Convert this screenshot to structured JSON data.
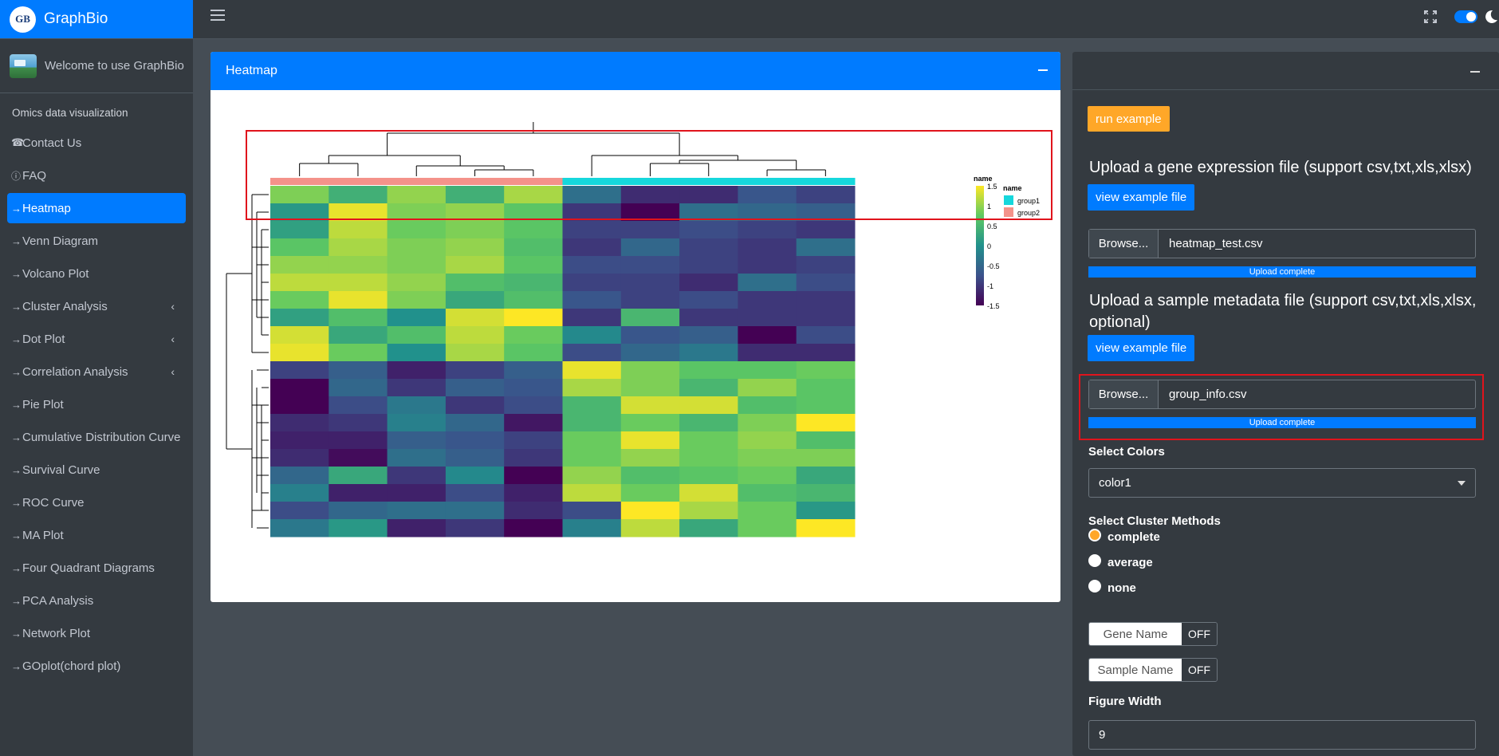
{
  "brand": {
    "logo_text": "GB",
    "title": "GraphBio"
  },
  "user_panel": {
    "text": "Welcome to use GraphBio"
  },
  "sidebar": {
    "header": "Omics data visualization",
    "items": [
      {
        "label": "Contact Us",
        "icon": "phone-icon"
      },
      {
        "label": "FAQ",
        "icon": "question-circle-icon"
      },
      {
        "label": "Heatmap",
        "icon": "arrow-right-icon",
        "active": true
      },
      {
        "label": "Venn Diagram",
        "icon": "arrow-right-icon"
      },
      {
        "label": "Volcano Plot",
        "icon": "arrow-right-icon"
      },
      {
        "label": "Cluster Analysis",
        "icon": "arrow-right-icon",
        "caret": true
      },
      {
        "label": "Dot Plot",
        "icon": "arrow-right-icon",
        "caret": true
      },
      {
        "label": "Correlation Analysis",
        "icon": "arrow-right-icon",
        "caret": true
      },
      {
        "label": "Pie Plot",
        "icon": "arrow-right-icon"
      },
      {
        "label": "Cumulative Distribution Curve",
        "icon": "arrow-right-icon"
      },
      {
        "label": "Survival Curve",
        "icon": "arrow-right-icon"
      },
      {
        "label": "ROC Curve",
        "icon": "arrow-right-icon"
      },
      {
        "label": "MA Plot",
        "icon": "arrow-right-icon"
      },
      {
        "label": "Four Quadrant Diagrams",
        "icon": "arrow-right-icon"
      },
      {
        "label": "PCA Analysis",
        "icon": "arrow-right-icon"
      },
      {
        "label": "Network Plot",
        "icon": "arrow-right-icon"
      },
      {
        "label": "GOplot(chord plot)",
        "icon": "arrow-right-icon"
      }
    ]
  },
  "heatmap_card": {
    "title": "Heatmap",
    "colorbar_title": "name",
    "colorbar_ticks": [
      "1.5",
      "1",
      "0.5",
      "0",
      "-0.5",
      "-1",
      "-1.5"
    ],
    "group_legend_title": "name",
    "group_legend": [
      {
        "label": "group1",
        "color": "#16d7dc"
      },
      {
        "label": "group2",
        "color": "#f4928a"
      }
    ]
  },
  "chart_data": {
    "type": "heatmap",
    "colorscale": "viridis",
    "zlim": [
      -1.5,
      1.5
    ],
    "column_groups": [
      "group2",
      "group2",
      "group2",
      "group2",
      "group2",
      "group1",
      "group1",
      "group1",
      "group1",
      "group1"
    ],
    "values": [
      [
        0.9,
        0.4,
        1.0,
        0.4,
        1.1,
        -0.4,
        -1.1,
        -1.1,
        -0.7,
        -0.9
      ],
      [
        0.1,
        1.4,
        0.9,
        1.0,
        0.7,
        -1.0,
        -1.6,
        -0.4,
        -0.5,
        -0.6
      ],
      [
        0.2,
        1.2,
        0.8,
        0.9,
        0.7,
        -0.9,
        -0.9,
        -0.8,
        -0.9,
        -1.0
      ],
      [
        0.7,
        1.1,
        0.9,
        1.0,
        0.6,
        -1.0,
        -0.5,
        -0.9,
        -1.0,
        -0.4
      ],
      [
        1.0,
        1.0,
        0.9,
        1.1,
        0.7,
        -0.8,
        -0.8,
        -0.9,
        -1.0,
        -0.9
      ],
      [
        1.2,
        1.2,
        1.0,
        0.6,
        0.5,
        -0.9,
        -0.9,
        -1.1,
        -0.4,
        -0.8
      ],
      [
        0.8,
        1.4,
        0.9,
        0.3,
        0.6,
        -0.7,
        -0.9,
        -0.8,
        -1.0,
        -1.0
      ],
      [
        0.2,
        0.6,
        0.0,
        1.3,
        1.5,
        -1.0,
        0.5,
        -1.0,
        -1.0,
        -1.0
      ],
      [
        1.3,
        0.3,
        0.6,
        1.2,
        0.8,
        -0.1,
        -0.7,
        -0.6,
        -1.5,
        -0.8
      ],
      [
        1.4,
        0.8,
        0.0,
        1.1,
        0.7,
        -0.8,
        -0.5,
        -0.3,
        -1.1,
        -1.1
      ],
      [
        -0.9,
        -0.6,
        -1.2,
        -0.9,
        -0.6,
        1.4,
        0.9,
        0.7,
        0.7,
        0.8
      ],
      [
        -1.5,
        -0.5,
        -1.0,
        -0.6,
        -0.7,
        1.1,
        0.9,
        0.5,
        1.0,
        0.7
      ],
      [
        -1.5,
        -0.8,
        -0.3,
        -1.0,
        -0.8,
        0.5,
        1.3,
        1.3,
        0.6,
        0.7
      ],
      [
        -1.1,
        -1.0,
        -0.2,
        -0.5,
        -1.3,
        0.5,
        0.8,
        0.5,
        0.9,
        1.5
      ],
      [
        -1.2,
        -1.2,
        -0.6,
        -0.7,
        -0.9,
        0.8,
        1.4,
        0.8,
        1.0,
        0.6
      ],
      [
        -1.1,
        -1.4,
        -0.4,
        -0.6,
        -1.0,
        0.8,
        1.0,
        0.8,
        0.9,
        0.9
      ],
      [
        -0.5,
        0.3,
        -1.0,
        -0.1,
        -1.5,
        1.0,
        0.6,
        0.7,
        0.8,
        0.3
      ],
      [
        -0.2,
        -1.2,
        -1.2,
        -0.8,
        -1.2,
        1.2,
        0.8,
        1.3,
        0.6,
        0.5
      ],
      [
        -0.8,
        -0.5,
        -0.4,
        -0.4,
        -1.1,
        -0.8,
        1.5,
        1.1,
        0.8,
        0.1
      ],
      [
        -0.3,
        0.1,
        -1.2,
        -1.0,
        -1.6,
        -0.2,
        1.2,
        0.3,
        0.8,
        1.5
      ]
    ]
  },
  "right_panel": {
    "run_example": "run example",
    "upload_expr_title": "Upload a gene expression file (support csv,txt,xls,xlsx)",
    "view_example_1": "view example file",
    "browse_1": "Browse...",
    "file_1": "heatmap_test.csv",
    "progress_1": "Upload complete",
    "upload_meta_title": "Upload a sample metadata file (support csv,txt,xls,xlsx, optional)",
    "view_example_2": "view example file",
    "browse_2": "Browse...",
    "file_2": "group_info.csv",
    "progress_2": "Upload complete",
    "select_colors_label": "Select Colors",
    "select_colors_value": "color1",
    "cluster_label": "Select Cluster Methods",
    "cluster_options": [
      "complete",
      "average",
      "none"
    ],
    "cluster_selected": "complete",
    "gene_name_label": "Gene Name",
    "gene_name_state": "OFF",
    "sample_name_label": "Sample Name",
    "sample_name_state": "OFF",
    "figure_width_label": "Figure Width",
    "figure_width_value": "9"
  },
  "colors": {
    "primary": "#007bff",
    "warning": "#ffa728",
    "sidebar": "#343a40",
    "content": "#454d55",
    "highlight": "#e0141c"
  }
}
